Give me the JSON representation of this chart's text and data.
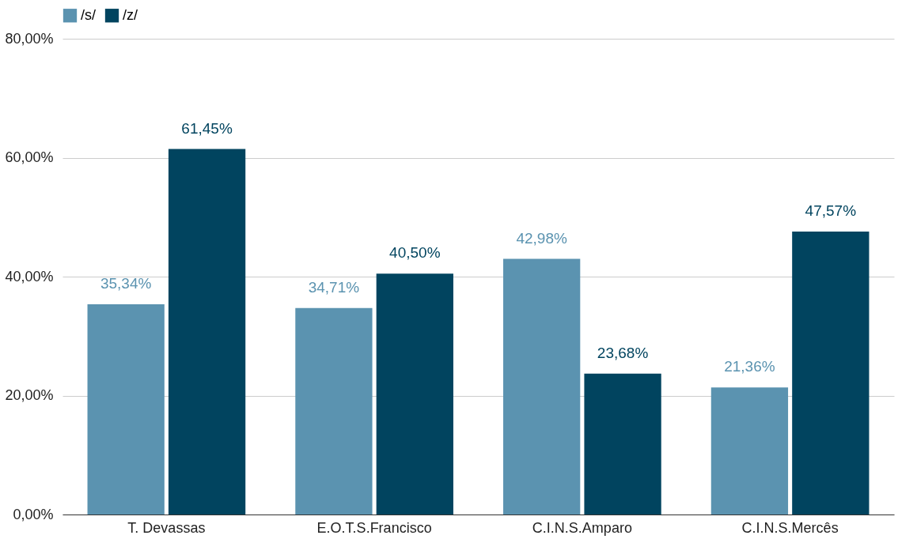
{
  "chart_data": {
    "type": "bar",
    "categories": [
      "T. Devassas",
      "E.O.T.S.Francisco",
      "C.I.N.S.Amparo",
      "C.I.N.S.Mercês"
    ],
    "series": [
      {
        "name": "/s/",
        "color": "#5b93b0",
        "values": [
          35.34,
          34.71,
          42.98,
          21.36
        ],
        "value_labels": [
          "35,34%",
          "34,71%",
          "42,98%",
          "21,36%"
        ]
      },
      {
        "name": "/z/",
        "color": "#01445f",
        "values": [
          61.45,
          40.5,
          23.68,
          47.57
        ],
        "value_labels": [
          "61,45%",
          "40,50%",
          "23,68%",
          "47,57%"
        ]
      }
    ],
    "ylim": [
      0,
      80
    ],
    "yticks": [
      {
        "value": 0,
        "label": "0,00%"
      },
      {
        "value": 20,
        "label": "20,00%"
      },
      {
        "value": 40,
        "label": "40,00%"
      },
      {
        "value": 60,
        "label": "60,00%"
      },
      {
        "value": 80,
        "label": "80,00%"
      }
    ],
    "grid": "y",
    "legend": "top"
  }
}
